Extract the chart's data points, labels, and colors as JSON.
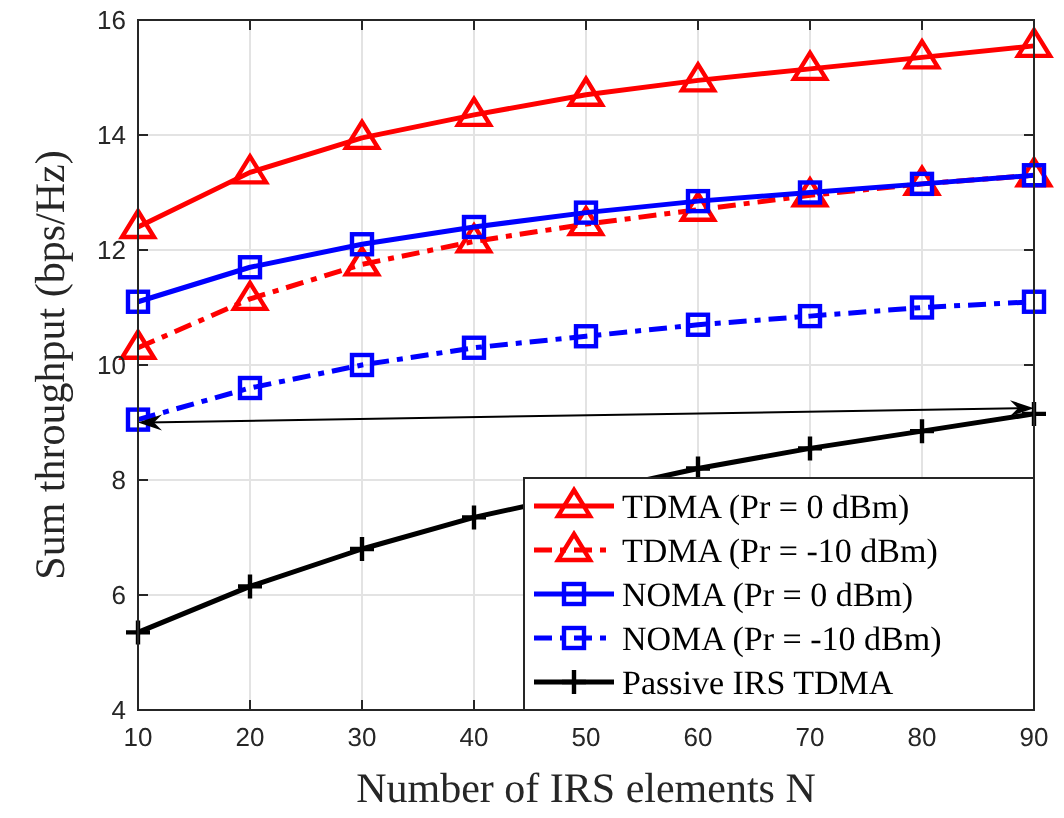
{
  "chart_data": {
    "type": "line",
    "xlabel": "Number of IRS elements N",
    "ylabel": "Sum throughput (bps/Hz)",
    "x": [
      10,
      20,
      30,
      40,
      50,
      60,
      70,
      80,
      90
    ],
    "xlim": [
      10,
      90
    ],
    "xticks": [
      10,
      20,
      30,
      40,
      50,
      60,
      70,
      80,
      90
    ],
    "ylim": [
      4,
      16
    ],
    "yticks": [
      4,
      6,
      8,
      10,
      12,
      14,
      16
    ],
    "grid": true,
    "legend": "bottom right",
    "series": [
      {
        "name": "TDMA (Pr = 0 dBm)",
        "color": "#ff0000",
        "marker": "triangle",
        "line_style": "solid",
        "values": [
          12.4,
          13.35,
          13.95,
          14.35,
          14.7,
          14.95,
          15.15,
          15.35,
          15.55
        ]
      },
      {
        "name": "TDMA (Pr = -10 dBm)",
        "color": "#ff0000",
        "marker": "triangle",
        "line_style": "dashed",
        "values": [
          10.3,
          11.15,
          11.75,
          12.15,
          12.45,
          12.7,
          12.95,
          13.15,
          13.3
        ]
      },
      {
        "name": "NOMA (Pr = 0 dBm)",
        "color": "#0000ff",
        "marker": "square",
        "line_style": "solid",
        "values": [
          11.1,
          11.7,
          12.1,
          12.4,
          12.65,
          12.85,
          13.0,
          13.15,
          13.3
        ]
      },
      {
        "name": "NOMA (Pr = -10 dBm)",
        "color": "#0000ff",
        "marker": "square",
        "line_style": "dashed",
        "values": [
          9.05,
          9.6,
          10.0,
          10.3,
          10.5,
          10.7,
          10.85,
          11.0,
          11.1
        ]
      },
      {
        "name": "Passive IRS TDMA",
        "color": "#000000",
        "marker": "cross",
        "line_style": "solid",
        "values": [
          5.35,
          6.15,
          6.8,
          7.35,
          null,
          8.2,
          8.55,
          8.85,
          9.15
        ]
      }
    ]
  }
}
